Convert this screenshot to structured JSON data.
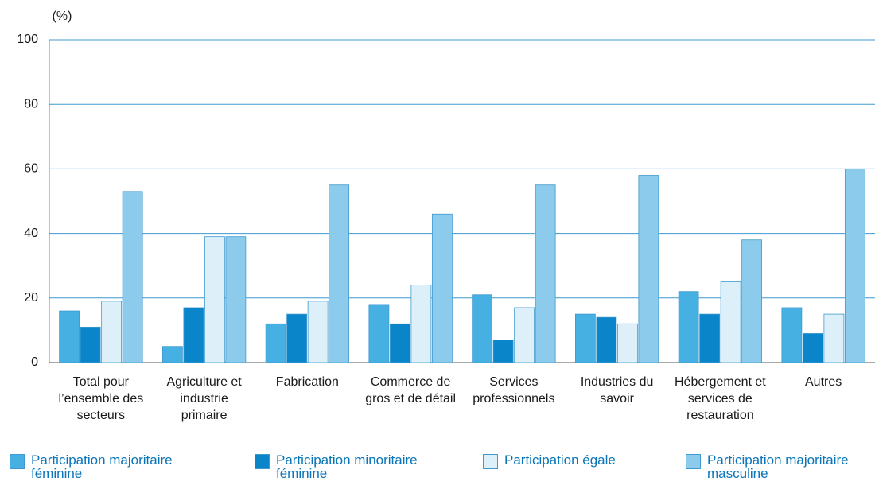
{
  "chart_data": {
    "type": "bar",
    "y_label": "(%)",
    "categories": [
      "Total pour l’ensemble des secteurs",
      "Agriculture et industrie primaire",
      "Fabrication",
      "Commerce de gros et de détail",
      "Services professionnels",
      "Industries du savoir",
      "Hébergement et services de restauration",
      "Autres"
    ],
    "series": [
      {
        "name": "Participation majoritaire féminine",
        "color": "#45b0e1",
        "values": [
          16,
          5,
          12,
          18,
          21,
          15,
          22,
          17
        ]
      },
      {
        "name": "Participation minoritaire féminine",
        "color": "#0a85c9",
        "values": [
          11,
          17,
          15,
          12,
          7,
          14,
          15,
          9
        ]
      },
      {
        "name": "Participation égale",
        "color": "#ddf0fa",
        "values": [
          19,
          39,
          19,
          24,
          17,
          12,
          25,
          15
        ]
      },
      {
        "name": "Participation majoritaire masculine",
        "color": "#8ccbec",
        "values": [
          53,
          39,
          55,
          46,
          55,
          58,
          38,
          60
        ]
      }
    ],
    "ylim": [
      0,
      100
    ],
    "yticks": [
      0,
      20,
      40,
      60,
      80,
      100
    ],
    "grid": true
  }
}
